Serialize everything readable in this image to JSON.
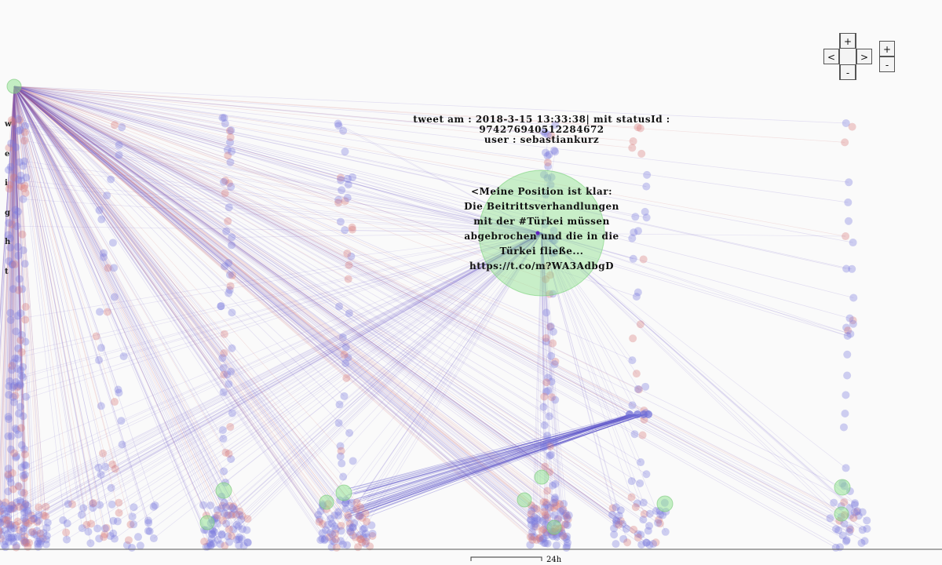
{
  "controls": {
    "pan_up": "+",
    "pan_left": "<",
    "pan_right": ">",
    "pan_down": "-",
    "zoom_in": "+",
    "zoom_out": "-"
  },
  "axis_label": "weight",
  "tooltip": {
    "header_lines": [
      "tweet am : 2018-3-15 13:33:38| mit statusId :",
      "974276940512284672"
    ],
    "user": "user : sebastiankurz",
    "text_lines": [
      "<Meine Position ist klar:",
      "Die Beitrittsverhandlungen",
      "mit der #Türkei müssen",
      "abgebrochen und die in die",
      "Türkei fließe...",
      "https://t.co/m?WA3AdbgD"
    ]
  },
  "scale_label": "24h"
}
